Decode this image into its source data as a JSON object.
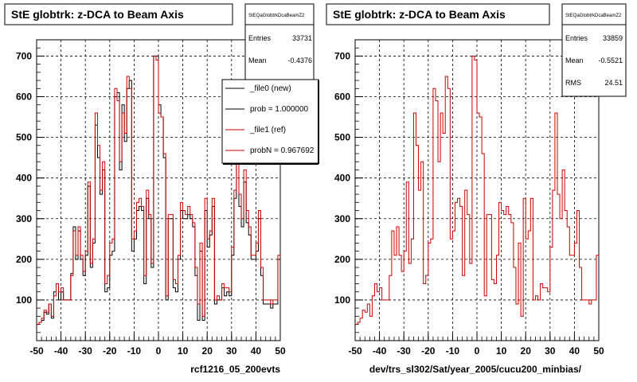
{
  "colors": {
    "new": "#000000",
    "ref": "#cc0000",
    "grid": "#000000",
    "background": "#ffffff"
  },
  "left_panel": {
    "title": "StE globtrk: z-DCA to Beam Axis",
    "stats": {
      "name": "StEQaGlobtrkDcaBeamZ2",
      "entries_label": "Entries",
      "entries_value": "33731",
      "mean_label": "Mean",
      "mean_value": "-0.4376"
    },
    "legend": [
      {
        "label": "_file0 (new)",
        "color": "#000000"
      },
      {
        "label": "prob = 1.000000",
        "color": "#000000"
      },
      {
        "label": "_file1 (ref)",
        "color": "#cc0000"
      },
      {
        "label": "probN = 0.967692",
        "color": "#cc0000"
      }
    ],
    "xlabel": "rcf1216_05_200evts"
  },
  "right_panel": {
    "title": "StE globtrk: z-DCA to Beam Axis",
    "stats": {
      "name": "StEQaGlobtrkDcaBeamZ2",
      "entries_label": "Entries",
      "entries_value": "33859",
      "mean_label": "Mean",
      "mean_value": "-0.5521",
      "rms_label": "RMS",
      "rms_value": "24.51"
    },
    "xlabel": "dev/trs_sl302/Sat/year_2005/cucu200_minbias/"
  },
  "chart_data": [
    {
      "type": "line",
      "title": "StE globtrk: z-DCA to Beam Axis",
      "xlabel": "rcf1216_05_200evts",
      "xlim": [
        -50,
        50
      ],
      "ylim": [
        0,
        740
      ],
      "xticks": [
        -50,
        -40,
        -30,
        -20,
        -10,
        0,
        10,
        20,
        30,
        40,
        50
      ],
      "yticks": [
        100,
        200,
        300,
        400,
        500,
        600,
        700
      ],
      "grid": true,
      "legend_position": "top-right",
      "bin_edges_start": -50,
      "bin_width": 1,
      "series": [
        {
          "name": "_file0 (new)",
          "color": "#000000",
          "values": [
            40,
            45,
            50,
            70,
            65,
            90,
            55,
            120,
            140,
            100,
            120,
            100,
            100,
            100,
            165,
            280,
            200,
            270,
            200,
            160,
            210,
            380,
            180,
            240,
            530,
            450,
            360,
            420,
            120,
            130,
            210,
            220,
            600,
            610,
            420,
            580,
            490,
            620,
            640,
            220,
            250,
            320,
            330,
            320,
            140,
            350,
            300,
            180,
            700,
            700,
            580,
            550,
            450,
            100,
            300,
            300,
            130,
            120,
            200,
            320,
            300,
            300,
            310,
            300,
            280,
            160,
            50,
            220,
            50,
            320,
            230,
            260,
            330,
            90,
            100,
            100,
            130,
            110,
            120,
            110,
            210,
            350,
            520,
            330,
            280,
            390,
            290,
            260,
            200,
            200,
            220,
            300,
            160,
            90,
            90,
            90,
            80,
            90,
            90,
            200
          ]
        },
        {
          "name": "_file1 (ref)",
          "color": "#cc0000",
          "values": [
            40,
            45,
            55,
            75,
            70,
            90,
            60,
            110,
            140,
            120,
            130,
            100,
            100,
            100,
            160,
            270,
            210,
            280,
            210,
            170,
            220,
            390,
            190,
            250,
            560,
            480,
            370,
            440,
            140,
            160,
            240,
            250,
            620,
            590,
            440,
            560,
            510,
            650,
            620,
            250,
            270,
            340,
            350,
            330,
            160,
            370,
            310,
            190,
            700,
            690,
            560,
            550,
            460,
            110,
            310,
            310,
            150,
            140,
            210,
            340,
            320,
            310,
            330,
            310,
            290,
            180,
            90,
            240,
            60,
            350,
            250,
            270,
            350,
            100,
            110,
            100,
            140,
            130,
            130,
            120,
            230,
            370,
            560,
            360,
            300,
            420,
            320,
            280,
            210,
            210,
            240,
            320,
            180,
            100,
            100,
            100,
            90,
            100,
            100,
            210
          ]
        }
      ]
    },
    {
      "type": "line",
      "title": "StE globtrk: z-DCA to Beam Axis",
      "xlabel": "dev/trs_sl302/Sat/year_2005/cucu200_minbias/",
      "xlim": [
        -50,
        50
      ],
      "ylim": [
        0,
        740
      ],
      "xticks": [
        -50,
        -40,
        -30,
        -20,
        -10,
        0,
        10,
        20,
        30,
        40,
        50
      ],
      "yticks": [
        100,
        200,
        300,
        400,
        500,
        600,
        700
      ],
      "grid": true,
      "bin_edges_start": -50,
      "bin_width": 1,
      "series": [
        {
          "name": "_file1 (ref)",
          "color": "#cc0000",
          "values": [
            40,
            45,
            55,
            75,
            70,
            90,
            60,
            110,
            140,
            120,
            130,
            100,
            100,
            100,
            160,
            270,
            210,
            280,
            210,
            170,
            220,
            390,
            190,
            250,
            560,
            480,
            370,
            440,
            140,
            160,
            240,
            250,
            620,
            590,
            440,
            560,
            510,
            650,
            620,
            250,
            270,
            340,
            350,
            330,
            160,
            370,
            310,
            190,
            700,
            690,
            560,
            550,
            460,
            110,
            310,
            310,
            150,
            140,
            210,
            340,
            320,
            310,
            330,
            310,
            290,
            180,
            90,
            240,
            60,
            350,
            250,
            270,
            350,
            100,
            110,
            100,
            140,
            130,
            130,
            120,
            230,
            370,
            560,
            360,
            300,
            420,
            320,
            280,
            210,
            210,
            240,
            320,
            180,
            100,
            100,
            100,
            90,
            100,
            100,
            210
          ]
        }
      ]
    }
  ]
}
